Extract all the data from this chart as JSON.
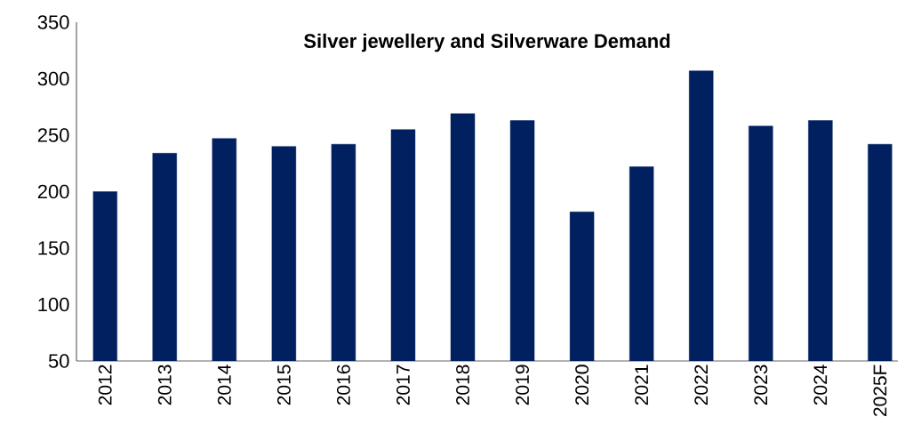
{
  "chart_data": {
    "type": "bar",
    "title": "Silver jewellery and Silverware Demand",
    "categories": [
      "2012",
      "2013",
      "2014",
      "2015",
      "2016",
      "2017",
      "2018",
      "2019",
      "2020",
      "2021",
      "2022",
      "2023",
      "2024",
      "2025F"
    ],
    "values": [
      200,
      234,
      247,
      240,
      242,
      255,
      269,
      263,
      182,
      222,
      307,
      258,
      263,
      242
    ],
    "color": "#002060",
    "ylim": [
      50,
      350
    ],
    "yticks": [
      50,
      100,
      150,
      200,
      250,
      300,
      350
    ]
  }
}
